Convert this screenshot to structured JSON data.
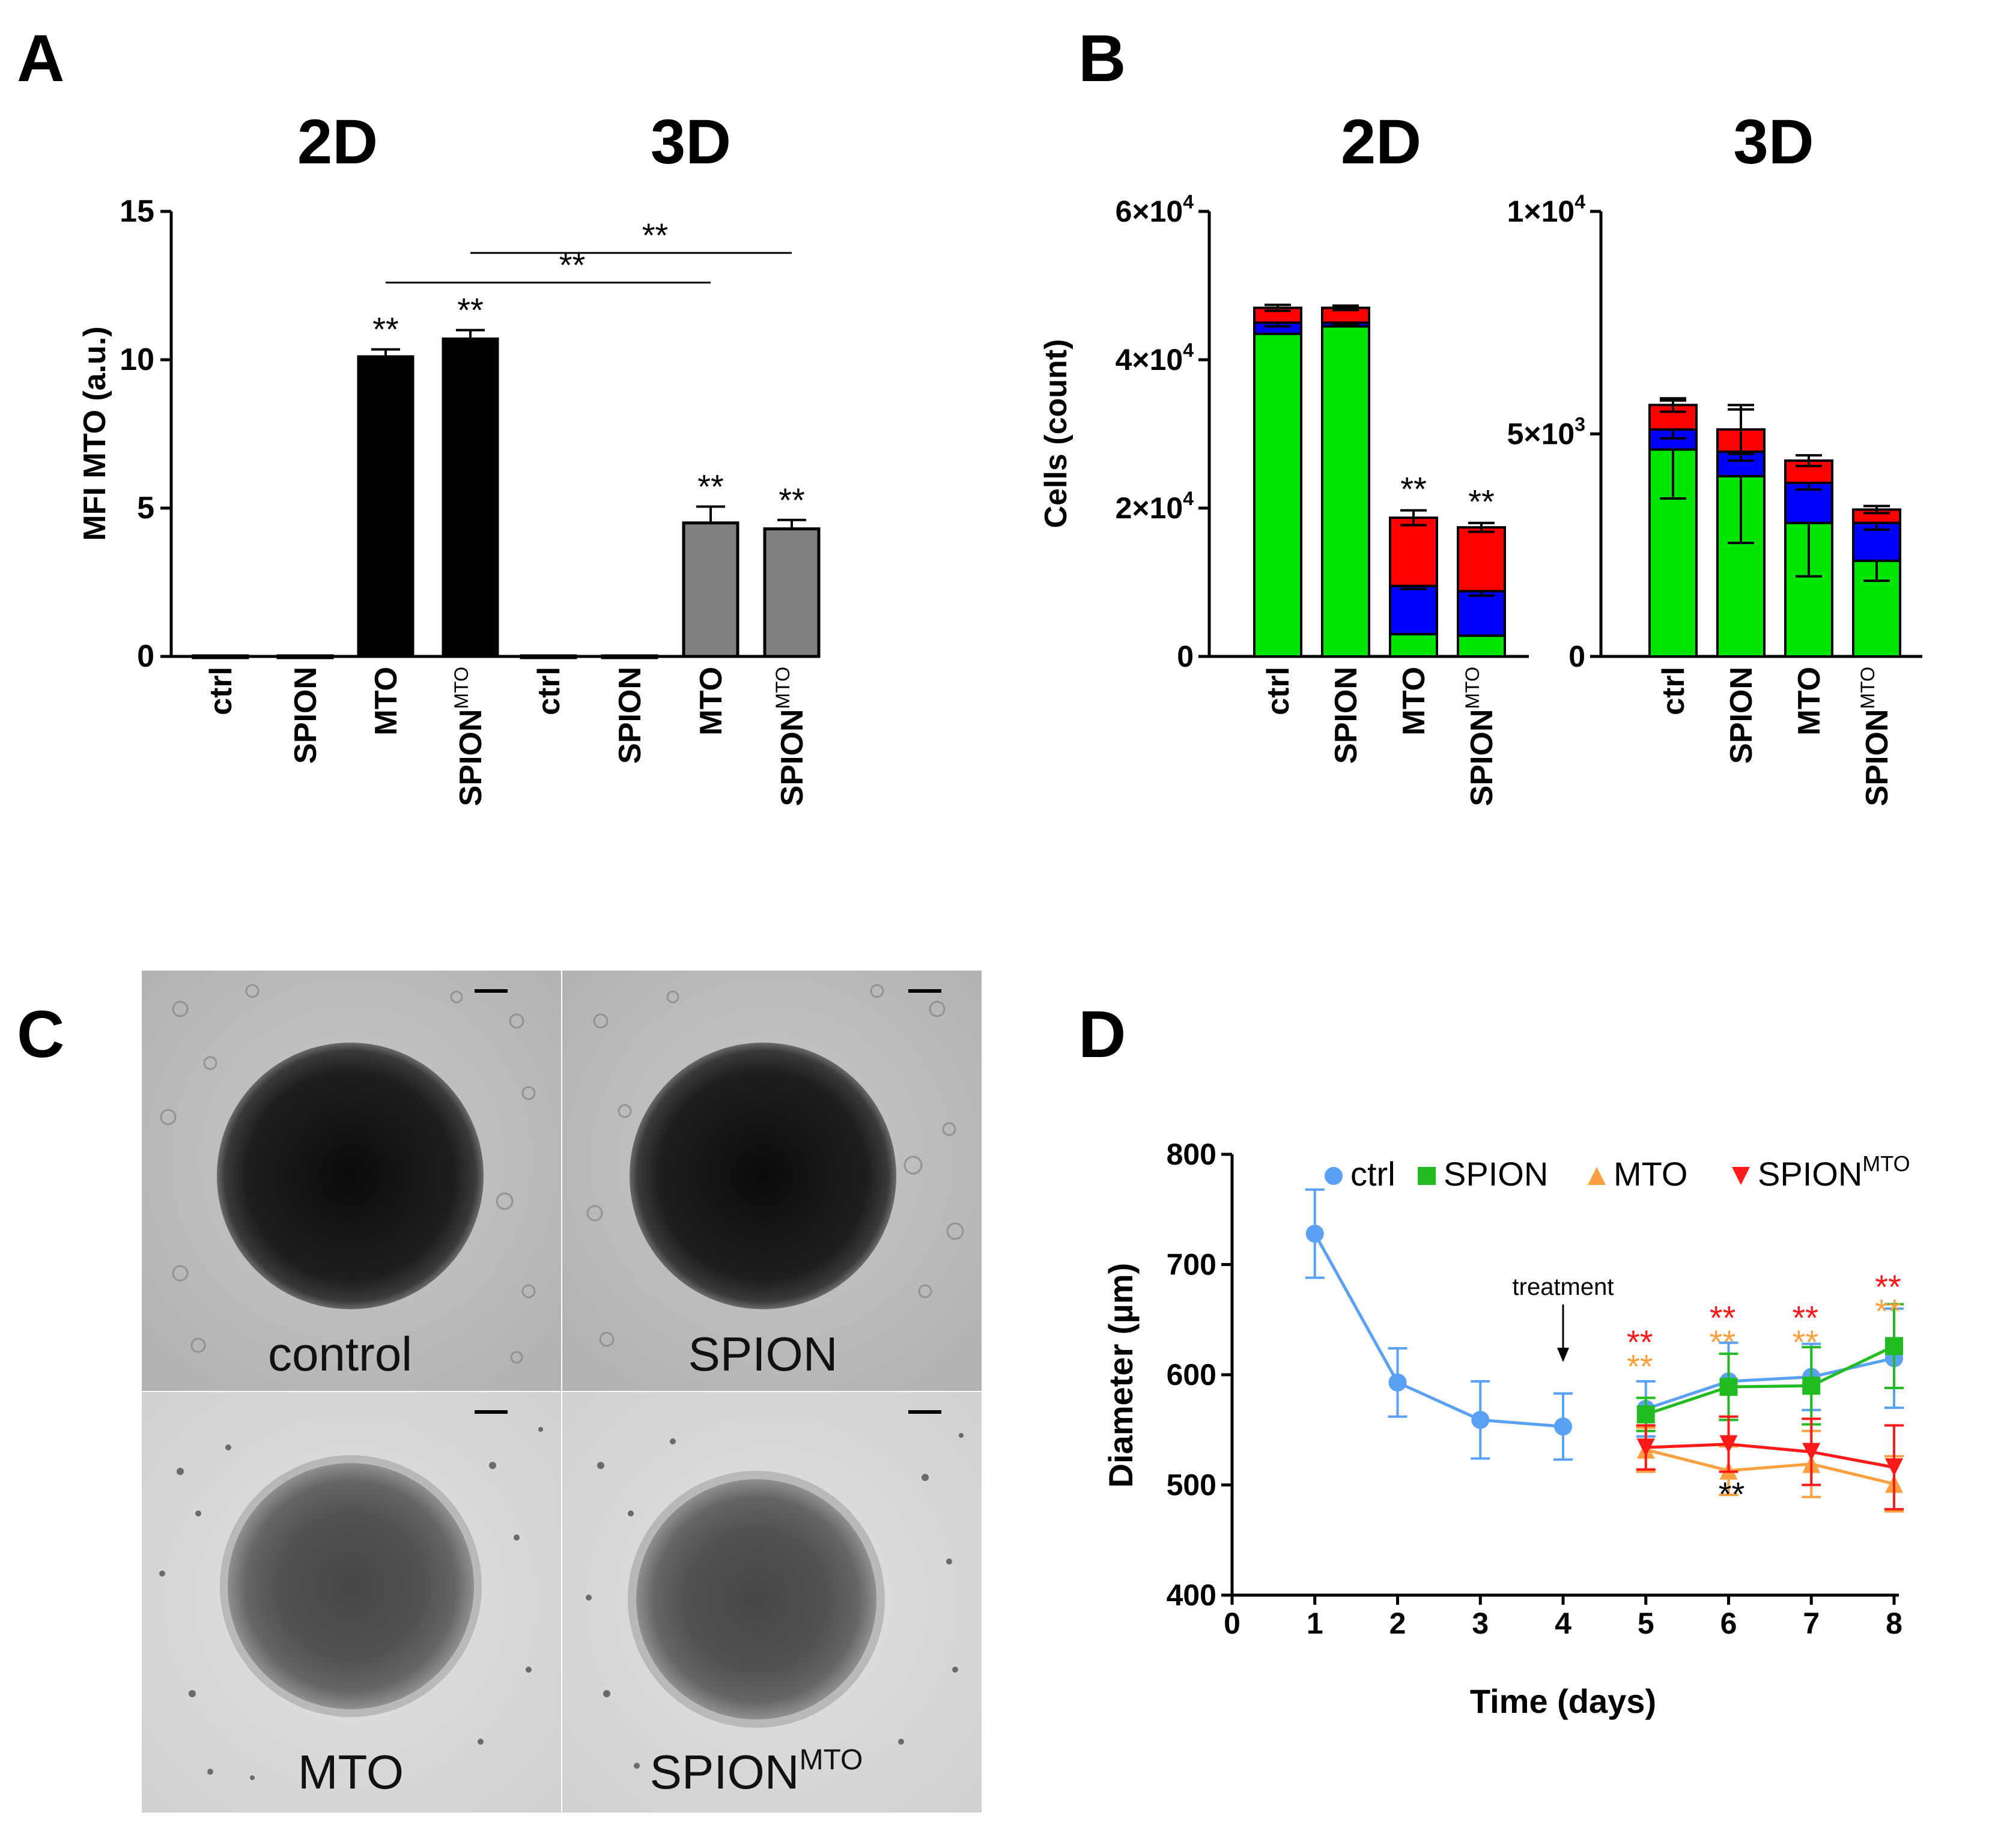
{
  "panel_labels": {
    "a": "A",
    "b": "B",
    "c": "C",
    "d": "D"
  },
  "colors": {
    "black_bar": "#000000",
    "gray_bar": "#808080",
    "green": "#00e600",
    "blue": "#0000ff",
    "red": "#ff0000",
    "ctrl_line": "#5aa0f5",
    "spion_line": "#22bb22",
    "mto_line": "#ffa040",
    "spionmto_line": "#ff1a1a"
  },
  "chart_data": [
    {
      "id": "A",
      "type": "bar",
      "group_titles": [
        "2D",
        "3D"
      ],
      "ylabel": "MFI MTO (a.u.)",
      "ylim": [
        0,
        15
      ],
      "yticks": [
        "0",
        "5",
        "10",
        "15"
      ],
      "bars": [
        {
          "label": "ctrl",
          "sup": "",
          "value": 0.02,
          "error": 0,
          "sig": "",
          "fill": "black"
        },
        {
          "label": "SPION",
          "sup": "",
          "value": 0.02,
          "error": 0,
          "sig": "",
          "fill": "black"
        },
        {
          "label": "MTO",
          "sup": "",
          "value": 10.1,
          "error": 0.25,
          "sig": "**",
          "fill": "black"
        },
        {
          "label": "SPION",
          "sup": "MTO",
          "value": 10.7,
          "error": 0.3,
          "sig": "**",
          "fill": "black"
        },
        {
          "label": "ctrl",
          "sup": "",
          "value": 0.02,
          "error": 0,
          "sig": "",
          "fill": "gray"
        },
        {
          "label": "SPION",
          "sup": "",
          "value": 0.02,
          "error": 0,
          "sig": "",
          "fill": "gray"
        },
        {
          "label": "MTO",
          "sup": "",
          "value": 4.5,
          "error": 0.55,
          "sig": "**",
          "fill": "gray"
        },
        {
          "label": "SPION",
          "sup": "MTO",
          "value": 4.3,
          "error": 0.3,
          "sig": "**",
          "fill": "gray"
        }
      ],
      "brackets": [
        {
          "from": 2,
          "to": 6,
          "value": 12.6,
          "label": "**"
        },
        {
          "from": 3,
          "to": 7,
          "value": 13.6,
          "label": "**"
        }
      ]
    },
    {
      "id": "B-2D",
      "type": "stacked-bar",
      "title": "2D",
      "ylabel": "Cells (count)",
      "ylim": [
        0,
        60000
      ],
      "yticks": [
        {
          "value": 0,
          "base": "0",
          "exp": ""
        },
        {
          "value": 20000,
          "base": "2×10",
          "exp": "4"
        },
        {
          "value": 40000,
          "base": "4×10",
          "exp": "4"
        },
        {
          "value": 60000,
          "base": "6×10",
          "exp": "4"
        }
      ],
      "categories": [
        {
          "label": "ctrl",
          "sup": ""
        },
        {
          "label": "SPION",
          "sup": ""
        },
        {
          "label": "MTO",
          "sup": ""
        },
        {
          "label": "SPION",
          "sup": "MTO"
        }
      ],
      "series": [
        {
          "name": "green",
          "values": [
            43500,
            44500,
            3000,
            2800
          ],
          "errors": [
            0,
            0,
            0,
            0
          ]
        },
        {
          "name": "blue",
          "values": [
            1500,
            500,
            6500,
            6000
          ],
          "errors": [
            500,
            300,
            400,
            600
          ]
        },
        {
          "name": "red",
          "values": [
            2000,
            2000,
            9200,
            8600
          ],
          "errors": [
            400,
            300,
            1000,
            600
          ]
        }
      ],
      "sig": [
        "",
        "",
        "**",
        "**"
      ]
    },
    {
      "id": "B-3D",
      "type": "stacked-bar",
      "title": "3D",
      "ylim": [
        0,
        10000
      ],
      "yticks": [
        {
          "value": 0,
          "base": "0",
          "exp": ""
        },
        {
          "value": 5000,
          "base": "5×10",
          "exp": "3"
        },
        {
          "value": 10000,
          "base": "1×10",
          "exp": "4"
        }
      ],
      "categories": [
        {
          "label": "ctrl",
          "sup": ""
        },
        {
          "label": "SPION",
          "sup": ""
        },
        {
          "label": "MTO",
          "sup": ""
        },
        {
          "label": "SPION",
          "sup": "MTO"
        }
      ],
      "series": [
        {
          "name": "green",
          "values": [
            4650,
            4050,
            3000,
            2150
          ],
          "errors": [
            1100,
            1500,
            1200,
            450
          ]
        },
        {
          "name": "blue",
          "values": [
            450,
            550,
            900,
            850
          ],
          "errors": [
            200,
            200,
            150,
            150
          ]
        },
        {
          "name": "red",
          "values": [
            550,
            500,
            500,
            300
          ],
          "errors": [
            150,
            550,
            120,
            80
          ]
        }
      ],
      "sig": [
        "",
        "",
        "",
        ""
      ]
    },
    {
      "id": "D",
      "type": "line",
      "xlabel": "Time (days)",
      "ylabel": "Diameter (µm)",
      "xlim": [
        0,
        8
      ],
      "ylim": [
        400,
        800
      ],
      "xticks": [
        "0",
        "1",
        "2",
        "3",
        "4",
        "5",
        "6",
        "7",
        "8"
      ],
      "yticks": [
        "400",
        "500",
        "600",
        "700",
        "800"
      ],
      "annotation": "treatment",
      "annotation_x": 4,
      "series": [
        {
          "name": "ctrl",
          "sup": "",
          "marker": "circle",
          "color": "ctrl_line",
          "x": [
            1,
            2,
            3,
            4,
            5,
            6,
            7,
            8
          ],
          "y": [
            728,
            593,
            559,
            553,
            569,
            594,
            598,
            615
          ],
          "err": [
            40,
            31,
            35,
            30,
            25,
            35,
            30,
            45
          ]
        },
        {
          "name": "SPION",
          "sup": "",
          "marker": "square",
          "color": "spion_line",
          "x": [
            5,
            6,
            7,
            8
          ],
          "y": [
            564,
            589,
            590,
            626
          ],
          "err": [
            15,
            30,
            35,
            38
          ]
        },
        {
          "name": "MTO",
          "sup": "",
          "marker": "triangle-up",
          "color": "mto_line",
          "x": [
            5,
            6,
            7,
            8
          ],
          "y": [
            532,
            513,
            519,
            501
          ],
          "err": [
            20,
            22,
            30,
            25
          ]
        },
        {
          "name": "SPION",
          "sup": "MTO",
          "marker": "triangle-down",
          "color": "spionmto_line",
          "x": [
            5,
            6,
            7,
            8
          ],
          "y": [
            534,
            537,
            530,
            516
          ],
          "err": [
            20,
            25,
            30,
            38
          ]
        }
      ],
      "sig_marks": [
        {
          "x": 5,
          "value": 630,
          "label": "**",
          "color": "spionmto_line"
        },
        {
          "x": 5,
          "value": 608,
          "label": "**",
          "color": "mto_line"
        },
        {
          "x": 6,
          "value": 652,
          "label": "**",
          "color": "spionmto_line"
        },
        {
          "x": 6,
          "value": 630,
          "label": "**",
          "color": "mto_line"
        },
        {
          "x": 7,
          "value": 652,
          "label": "**",
          "color": "spionmto_line"
        },
        {
          "x": 7,
          "value": 630,
          "label": "**",
          "color": "mto_line"
        },
        {
          "x": 8,
          "value": 680,
          "label": "**",
          "color": "spionmto_line"
        },
        {
          "x": 8,
          "value": 658,
          "label": "**",
          "color": "mto_line"
        },
        {
          "x": 6,
          "value": 492,
          "label": "**",
          "color": "black"
        }
      ]
    }
  ],
  "images": {
    "c1": {
      "label": "control",
      "sup": ""
    },
    "c2": {
      "label": "SPION",
      "sup": ""
    },
    "c3": {
      "label": "MTO",
      "sup": ""
    },
    "c4": {
      "label": "SPION",
      "sup": "MTO"
    }
  }
}
